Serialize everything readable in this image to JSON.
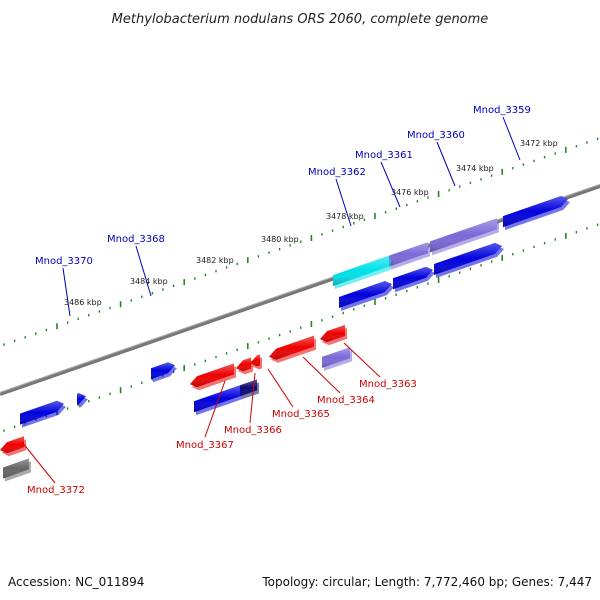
{
  "title": "Methylobacterium nodulans ORS 2060, complete genome",
  "footer": {
    "accession": "Accession: NC_011894",
    "summary": "Topology: circular; Length: 7,772,460 bp; Genes: 7,447"
  },
  "colors": {
    "forward": "#0000dd",
    "reverse": "#ee0000",
    "highlight_cyan": "#00e0e8",
    "lavender": "#7b68d8",
    "navy": "#0a0a70",
    "gray": "#666666",
    "backbone": "#888888",
    "tick": "#228822",
    "label_forward": "#0000bb",
    "label_reverse": "#cc0000"
  },
  "tick_labels": [
    {
      "text": "3472 kbp",
      "key": "t3472"
    },
    {
      "text": "3474 kbp",
      "key": "t3474"
    },
    {
      "text": "3476 kbp",
      "key": "t3476"
    },
    {
      "text": "3478 kbp",
      "key": "t3478"
    },
    {
      "text": "3480 kbp",
      "key": "t3480"
    },
    {
      "text": "3482 kbp",
      "key": "t3482"
    },
    {
      "text": "3484 kbp",
      "key": "t3484"
    },
    {
      "text": "3486 kbp",
      "key": "t3486"
    }
  ],
  "gene_labels_forward": [
    {
      "text": "Mnod_3359",
      "key": "g3359"
    },
    {
      "text": "Mnod_3360",
      "key": "g3360"
    },
    {
      "text": "Mnod_3361",
      "key": "g3361"
    },
    {
      "text": "Mnod_3362",
      "key": "g3362"
    },
    {
      "text": "Mnod_3368",
      "key": "g3368"
    },
    {
      "text": "Mnod_3370",
      "key": "g3370"
    }
  ],
  "gene_labels_reverse": [
    {
      "text": "Mnod_3363",
      "key": "g3363"
    },
    {
      "text": "Mnod_3364",
      "key": "g3364"
    },
    {
      "text": "Mnod_3365",
      "key": "g3365"
    },
    {
      "text": "Mnod_3366",
      "key": "g3366"
    },
    {
      "text": "Mnod_3367",
      "key": "g3367"
    },
    {
      "text": "Mnod_3372",
      "key": "g3372"
    }
  ]
}
